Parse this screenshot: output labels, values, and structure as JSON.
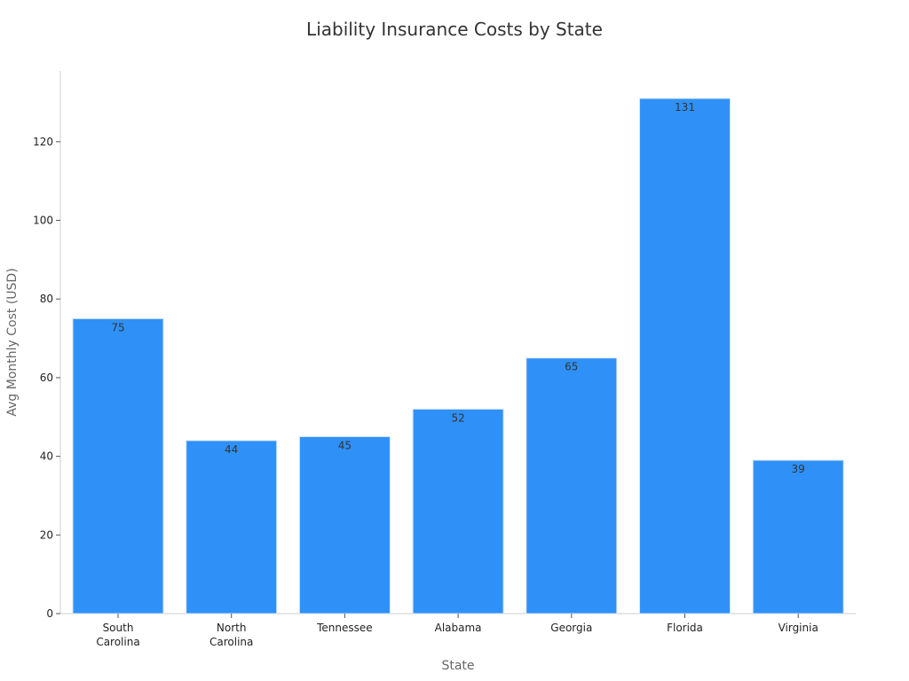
{
  "chart_data": {
    "type": "bar",
    "title": "Liability Insurance Costs by State",
    "xlabel": "State",
    "ylabel": "Avg Monthly Cost (USD)",
    "categories": [
      "South Carolina",
      "North Carolina",
      "Tennessee",
      "Alabama",
      "Georgia",
      "Florida",
      "Virginia"
    ],
    "category_lines": [
      [
        "South",
        "Carolina"
      ],
      [
        "North",
        "Carolina"
      ],
      [
        "Tennessee"
      ],
      [
        "Alabama"
      ],
      [
        "Georgia"
      ],
      [
        "Florida"
      ],
      [
        "Virginia"
      ]
    ],
    "values": [
      75,
      44,
      45,
      52,
      65,
      131,
      39
    ],
    "ylim": [
      0,
      138
    ],
    "yticks": [
      0,
      20,
      40,
      60,
      80,
      100,
      120
    ],
    "grid": false,
    "bar_color": "#2f91f7",
    "bar_edge_color": "#d6e4f2"
  }
}
